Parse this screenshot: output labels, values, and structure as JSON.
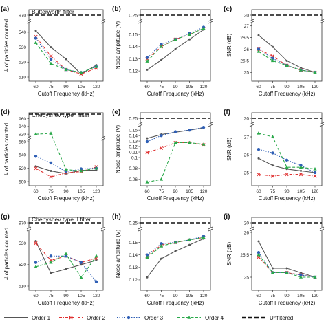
{
  "figure": {
    "legend": [
      {
        "label": "Order 1",
        "color": "#555555",
        "marker": "line",
        "dash": "solid"
      },
      {
        "label": "Order 2",
        "color": "#e03030",
        "marker": "x",
        "dash": "dashdot"
      },
      {
        "label": "Order 3",
        "color": "#2f5fb5",
        "marker": "circle",
        "dash": "dotted"
      },
      {
        "label": "Order 4",
        "color": "#2aa84a",
        "marker": "triangle",
        "dash": "dashed"
      },
      {
        "label": "Unfiltered",
        "color": "#111111",
        "marker": "none",
        "dash": "heavydash"
      }
    ]
  },
  "chart_data": [
    {
      "panel": "(a)",
      "title": "Butterworth filter",
      "type": "line",
      "xlabel": "Cutoff Frequency (kHz)",
      "ylabel": "# of particles counted",
      "categories": [
        60,
        75,
        90,
        105,
        120
      ],
      "yticks": [
        510,
        520,
        530,
        540,
        970
      ],
      "ylim": [
        510,
        545
      ],
      "break": true,
      "unfiltered": 970,
      "series": [
        {
          "name": "Order 1",
          "values": [
            541,
            530,
            522,
            512,
            518
          ]
        },
        {
          "name": "Order 2",
          "values": [
            537,
            524,
            515,
            512,
            516
          ]
        },
        {
          "name": "Order 3",
          "values": [
            536,
            522,
            515,
            513,
            517
          ]
        },
        {
          "name": "Order 4",
          "values": [
            533,
            519,
            515,
            513,
            517
          ]
        }
      ]
    },
    {
      "panel": "(b)",
      "title": "",
      "type": "line",
      "xlabel": "Cutoff Frequency (kHz)",
      "ylabel": "Noise amplitude (V)",
      "categories": [
        60,
        75,
        90,
        105,
        120
      ],
      "yticks": [
        0.12,
        0.13,
        0.14,
        0.15,
        0.25
      ],
      "ylim": [
        0.115,
        0.158
      ],
      "break": true,
      "unfiltered": 0.25,
      "series": [
        {
          "name": "Order 1",
          "values": [
            0.121,
            0.129,
            0.138,
            0.146,
            0.154
          ]
        },
        {
          "name": "Order 2",
          "values": [
            0.13,
            0.14,
            0.146,
            0.15,
            0.155
          ]
        },
        {
          "name": "Order 3",
          "values": [
            0.131,
            0.142,
            0.146,
            0.151,
            0.156
          ]
        },
        {
          "name": "Order 4",
          "values": [
            0.128,
            0.14,
            0.146,
            0.15,
            0.155
          ]
        }
      ]
    },
    {
      "panel": "(c)",
      "title": "",
      "type": "line",
      "xlabel": "Cutoff Frequency (kHz)",
      "ylabel": "SNR (dB)",
      "categories": [
        60,
        75,
        90,
        105,
        120
      ],
      "yticks": [
        20.0,
        25.0,
        25.5,
        26.0,
        26.5,
        27.0
      ],
      "ylim": [
        24.8,
        27.05
      ],
      "break": true,
      "unfiltered": 20.0,
      "series": [
        {
          "name": "Order 1",
          "values": [
            26.6,
            26.1,
            25.5,
            25.2,
            25.0
          ]
        },
        {
          "name": "Order 2",
          "values": [
            26.0,
            25.7,
            25.3,
            25.1,
            25.0
          ]
        },
        {
          "name": "Order 3",
          "values": [
            26.0,
            25.6,
            25.3,
            25.1,
            25.0
          ]
        },
        {
          "name": "Order 4",
          "values": [
            25.9,
            25.5,
            25.3,
            25.1,
            25.0
          ]
        }
      ]
    },
    {
      "panel": "(d)",
      "title": "Chebyshev type I filter",
      "type": "line",
      "xlabel": "Cutoff Frequency (kHz)",
      "ylabel": "# of particles counted",
      "categories": [
        60,
        75,
        90,
        105,
        120
      ],
      "yticks": [
        500,
        520,
        540,
        560,
        920,
        940,
        960
      ],
      "ylim": [
        500,
        560
      ],
      "ylim_upper": [
        915,
        968
      ],
      "break": true,
      "unfiltered": 968,
      "series": [
        {
          "name": "Order 1",
          "values": [
            523,
            516,
            512,
            517,
            517
          ]
        },
        {
          "name": "Order 2",
          "values": [
            520,
            507,
            513,
            515,
            522
          ]
        },
        {
          "name": "Order 3",
          "values": [
            538,
            528,
            515,
            519,
            520
          ]
        },
        {
          "name": "Order 4",
          "values": [
            920,
            922,
            518,
            516,
            520
          ]
        }
      ]
    },
    {
      "panel": "(e)",
      "title": "",
      "type": "line",
      "xlabel": "Cutoff Frequency (kHz)",
      "ylabel": "Noise amplitude (V)",
      "categories": [
        60,
        75,
        90,
        105,
        120
      ],
      "yticks": [
        0.06,
        0.08,
        0.1,
        0.11,
        0.12,
        0.13,
        0.14,
        0.15,
        0.25
      ],
      "break": true,
      "unfiltered": 0.25,
      "series": [
        {
          "name": "Order 1",
          "values": [
            0.135,
            0.142,
            0.146,
            0.15,
            0.154
          ]
        },
        {
          "name": "Order 2",
          "values": [
            0.109,
            0.117,
            0.127,
            0.127,
            0.123
          ]
        },
        {
          "name": "Order 3",
          "values": [
            0.129,
            0.14,
            0.147,
            0.15,
            0.155
          ]
        },
        {
          "name": "Order 4",
          "values": [
            0.055,
            0.06,
            0.127,
            0.127,
            0.124
          ]
        }
      ]
    },
    {
      "panel": "(f)",
      "title": "",
      "type": "line",
      "xlabel": "Cutoff Frequency (kHz)",
      "ylabel": "SNR (dB)",
      "categories": [
        60,
        75,
        90,
        105,
        120
      ],
      "yticks": [
        20,
        25,
        26,
        27
      ],
      "ylim": [
        24.5,
        27.5
      ],
      "break": true,
      "unfiltered": 20,
      "series": [
        {
          "name": "Order 1",
          "values": [
            25.8,
            25.4,
            25.2,
            25.1,
            25.0
          ]
        },
        {
          "name": "Order 2",
          "values": [
            24.9,
            24.8,
            24.9,
            24.9,
            24.8
          ]
        },
        {
          "name": "Order 3",
          "values": [
            26.3,
            26.1,
            25.7,
            25.4,
            25.0
          ]
        },
        {
          "name": "Order 4",
          "values": [
            27.2,
            27.0,
            25.3,
            25.3,
            25.2
          ]
        }
      ]
    },
    {
      "panel": "(g)",
      "title": "Chebyshev type II filter",
      "type": "line",
      "xlabel": "Cutoff Frequency (kHz)",
      "ylabel": "# of particles counted",
      "categories": [
        60,
        75,
        90,
        105,
        120
      ],
      "yticks": [
        510,
        520,
        530,
        970
      ],
      "ylim": [
        510,
        535
      ],
      "break": true,
      "unfiltered": 970,
      "series": [
        {
          "name": "Order 1",
          "values": [
            531,
            516,
            518,
            520,
            522
          ]
        },
        {
          "name": "Order 2",
          "values": [
            530,
            522,
            524,
            521,
            523
          ]
        },
        {
          "name": "Order 3",
          "values": [
            521,
            524,
            524,
            521,
            512
          ]
        },
        {
          "name": "Order 4",
          "values": [
            519,
            521,
            525,
            514,
            524
          ]
        }
      ]
    },
    {
      "panel": "(h)",
      "title": "",
      "type": "line",
      "xlabel": "Cutoff Frequency (kHz)",
      "ylabel": "Noise amplitude (V)",
      "categories": [
        60,
        75,
        90,
        105,
        120
      ],
      "yticks": [
        0.12,
        0.13,
        0.14,
        0.15,
        0.25
      ],
      "ylim": [
        0.115,
        0.158
      ],
      "break": true,
      "unfiltered": 0.25,
      "series": [
        {
          "name": "Order 1",
          "values": [
            0.122,
            0.137,
            0.143,
            0.148,
            0.153
          ]
        },
        {
          "name": "Order 2",
          "values": [
            0.139,
            0.148,
            0.15,
            0.152,
            0.154
          ]
        },
        {
          "name": "Order 3",
          "values": [
            0.14,
            0.149,
            0.15,
            0.152,
            0.155
          ]
        },
        {
          "name": "Order 4",
          "values": [
            0.138,
            0.147,
            0.15,
            0.152,
            0.154
          ]
        }
      ]
    },
    {
      "panel": "(i)",
      "title": "",
      "type": "line",
      "xlabel": "Cutoff Frequency (kHz)",
      "ylabel": "SNR (dB)",
      "categories": [
        60,
        75,
        90,
        105,
        120
      ],
      "yticks": [
        20.0,
        25.0,
        25.5,
        26.0
      ],
      "ylim": [
        24.8,
        26.0
      ],
      "break": true,
      "unfiltered": 20.0,
      "series": [
        {
          "name": "Order 1",
          "values": [
            25.8,
            25.2,
            25.2,
            25.1,
            25.0
          ]
        },
        {
          "name": "Order 2",
          "values": [
            25.45,
            25.1,
            25.1,
            25.05,
            25.0
          ]
        },
        {
          "name": "Order 3",
          "values": [
            25.55,
            25.1,
            25.1,
            25.05,
            25.0
          ]
        },
        {
          "name": "Order 4",
          "values": [
            25.5,
            25.1,
            25.1,
            25.0,
            25.0
          ]
        }
      ]
    }
  ]
}
